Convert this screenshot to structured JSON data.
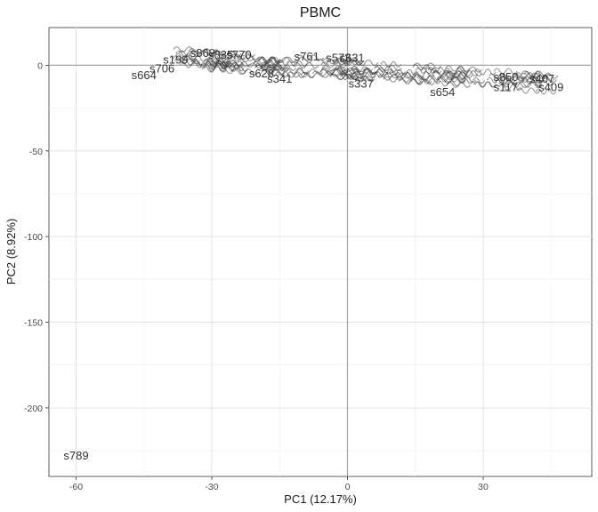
{
  "chart_data": {
    "type": "scatter",
    "title": "PBMC",
    "xlabel": "PC1 (12.17%)",
    "ylabel": "PC2 (8.92%)",
    "xlim": [
      -66,
      54
    ],
    "ylim": [
      -240,
      22
    ],
    "x_ticks": [
      -60,
      -30,
      0,
      30
    ],
    "y_ticks": [
      0,
      -50,
      -100,
      -150,
      -200
    ],
    "x_tick_labels": [
      "-60",
      "-30",
      "0",
      "30"
    ],
    "y_tick_labels": [
      "0",
      "-50",
      "-100",
      "-150",
      "-200"
    ],
    "grid": true,
    "reference_lines": {
      "x": 0,
      "y": 0
    },
    "points": [
      {
        "label": "s789",
        "x": -60,
        "y": -228
      },
      {
        "label": "s664",
        "x": -45,
        "y": -6
      },
      {
        "label": "s706",
        "x": -41,
        "y": -2
      },
      {
        "label": "s199",
        "x": -38,
        "y": 3
      },
      {
        "label": "s869",
        "x": -32,
        "y": 7
      },
      {
        "label": "s835",
        "x": -28,
        "y": 6
      },
      {
        "label": "s770",
        "x": -24,
        "y": 6
      },
      {
        "label": "s761",
        "x": -9,
        "y": 5
      },
      {
        "label": "s573",
        "x": -2,
        "y": 4
      },
      {
        "label": "s631",
        "x": 1,
        "y": 4
      },
      {
        "label": "s628",
        "x": -19,
        "y": -5
      },
      {
        "label": "s341",
        "x": -15,
        "y": -8
      },
      {
        "label": "s337",
        "x": 3,
        "y": -11
      },
      {
        "label": "s654",
        "x": 21,
        "y": -16
      },
      {
        "label": "s850",
        "x": 35,
        "y": -7
      },
      {
        "label": "s117",
        "x": 35,
        "y": -13
      },
      {
        "label": "s407",
        "x": 43,
        "y": -8
      },
      {
        "label": "s409",
        "x": 45,
        "y": -13
      }
    ]
  }
}
